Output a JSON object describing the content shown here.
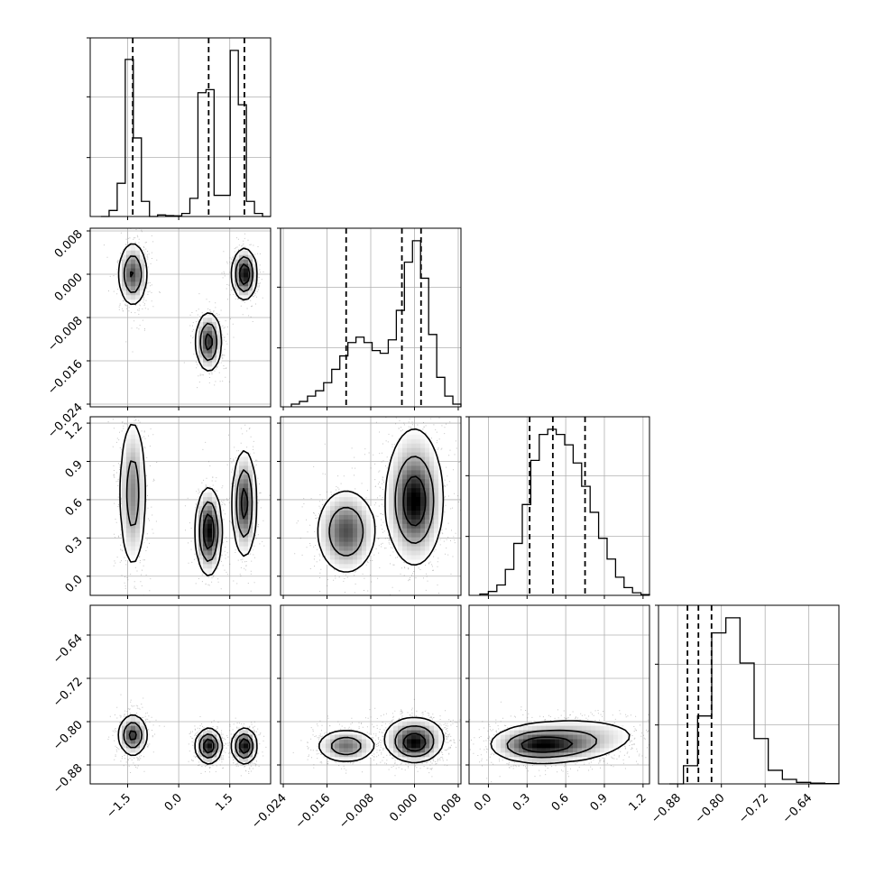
{
  "chart_data": {
    "type": "corner",
    "title": "",
    "parameters": [
      {
        "ticks": [
          -1.5,
          0.0,
          1.5
        ],
        "tick_labels": [
          "−1.5",
          "0.0",
          "1.5"
        ],
        "range": [
          -2.6,
          2.7
        ]
      },
      {
        "ticks": [
          -0.024,
          -0.016,
          -0.008,
          0.0,
          0.008
        ],
        "tick_labels": [
          "−0.024",
          "−0.016",
          "−0.008",
          "0.000",
          "0.008"
        ],
        "range": [
          -0.0245,
          0.0085
        ]
      },
      {
        "ticks": [
          0.0,
          0.3,
          0.6,
          0.9,
          1.2
        ],
        "tick_labels": [
          "0.0",
          "0.3",
          "0.6",
          "0.9",
          "1.2"
        ],
        "range": [
          -0.15,
          1.25
        ]
      },
      {
        "ticks": [
          -0.88,
          -0.8,
          -0.72,
          -0.64
        ],
        "tick_labels": [
          "−0.88",
          "−0.80",
          "−0.72",
          "−0.64"
        ],
        "range": [
          -0.915,
          -0.585
        ]
      }
    ],
    "quantiles": [
      [
        -1.35,
        0.88,
        1.93
      ],
      [
        -0.0125,
        -0.0023,
        0.0012
      ],
      [
        0.32,
        0.5,
        0.75
      ],
      [
        -0.862,
        -0.842,
        -0.818
      ]
    ],
    "histograms": [
      {
        "counts": [
          0,
          2,
          11,
          52,
          26,
          5,
          0,
          0.5,
          0.3,
          0.2,
          1,
          6,
          41,
          42,
          7,
          7,
          55,
          37,
          5,
          1,
          0
        ]
      },
      {
        "counts": [
          1,
          2,
          4,
          6,
          9,
          14,
          19,
          24,
          26,
          24,
          21,
          20,
          25,
          36,
          54,
          62,
          48,
          27,
          11,
          4,
          1
        ]
      },
      {
        "counts": [
          0.5,
          1.5,
          4,
          10,
          20,
          35,
          52,
          62,
          64,
          62,
          58,
          51,
          42,
          32,
          22,
          14,
          7,
          3,
          1,
          0.3
        ]
      },
      {
        "counts": [
          0,
          12,
          45,
          100,
          110,
          80,
          30,
          9,
          3,
          1,
          0.5,
          0.2
        ]
      }
    ],
    "components": [
      {
        "x": [
          -1.35,
          0.2
        ],
        "y": [
          0.0,
          0.0028
        ],
        "z": [
          0.65,
          0.3
        ],
        "w": [
          -0.825,
          0.018
        ],
        "weight": 0.35
      },
      {
        "x": [
          0.88,
          0.18
        ],
        "y": [
          -0.0125,
          0.0026
        ],
        "z": [
          0.35,
          0.16
        ],
        "w": [
          -0.845,
          0.015
        ],
        "weight": 0.33
      },
      {
        "x": [
          1.93,
          0.17
        ],
        "y": [
          0.0,
          0.0022
        ],
        "z": [
          0.57,
          0.2
        ],
        "w": [
          -0.845,
          0.015
        ],
        "weight": 0.32
      }
    ],
    "contour_levels": [
      0.1,
      0.35,
      0.7
    ]
  }
}
